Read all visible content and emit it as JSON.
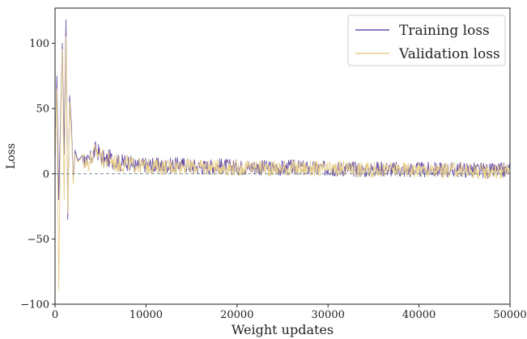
{
  "chart_data": {
    "type": "line",
    "title": "",
    "xlabel": "Weight updates",
    "ylabel": "Loss",
    "xlim": [
      0,
      50000
    ],
    "ylim": [
      -100,
      127
    ],
    "xticks": [
      0,
      10000,
      20000,
      30000,
      40000,
      50000
    ],
    "xtick_labels": [
      "0",
      "10000",
      "20000",
      "30000",
      "40000",
      "50000"
    ],
    "yticks": [
      -100,
      -50,
      0,
      50,
      100
    ],
    "ytick_labels": [
      "−100",
      "−50",
      "0",
      "50",
      "100"
    ],
    "grid": false,
    "reference_line": {
      "y": 0,
      "style": "dashed",
      "color": "#5a7a8c"
    },
    "legend": {
      "placement": "top-right"
    },
    "series": [
      {
        "name": "Training loss",
        "color": "#6a4fa8",
        "x": [
          0,
          200,
          400,
          600,
          800,
          1000,
          1200,
          1400,
          1600,
          1800,
          2000,
          2200,
          2500,
          3000,
          3500,
          4000,
          4500,
          5000,
          5500,
          6000,
          7000,
          8000,
          9000,
          10000,
          12000,
          14000,
          16000,
          18000,
          20000,
          22000,
          24000,
          26000,
          28000,
          30000,
          32000,
          34000,
          36000,
          38000,
          40000,
          42000,
          44000,
          46000,
          48000,
          50000
        ],
        "values": [
          10,
          75,
          -20,
          40,
          100,
          15,
          118,
          -35,
          60,
          37,
          -5,
          18,
          10,
          14,
          8,
          12,
          19,
          14,
          10,
          12,
          8,
          9,
          6,
          7,
          6,
          7,
          5,
          6,
          5,
          5,
          4,
          5,
          4,
          4,
          4,
          3,
          4,
          3,
          3,
          3,
          3,
          3,
          2,
          3
        ]
      },
      {
        "name": "Validation loss",
        "color": "#e8d08a",
        "x": [
          0,
          200,
          400,
          600,
          800,
          1000,
          1200,
          1400,
          1600,
          1800,
          2000,
          2200,
          2500,
          3000,
          3500,
          4000,
          4500,
          5000,
          5500,
          6000,
          7000,
          8000,
          9000,
          10000,
          12000,
          14000,
          16000,
          18000,
          20000,
          22000,
          24000,
          26000,
          28000,
          30000,
          32000,
          34000,
          36000,
          38000,
          40000,
          42000,
          44000,
          46000,
          48000,
          50000
        ],
        "values": [
          8,
          65,
          -90,
          30,
          95,
          -20,
          105,
          -30,
          55,
          30,
          -8,
          15,
          9,
          13,
          7,
          11,
          18,
          13,
          9,
          11,
          7,
          8,
          6,
          6,
          5,
          6,
          5,
          5,
          4,
          5,
          4,
          4,
          4,
          3,
          4,
          3,
          3,
          3,
          3,
          2,
          3,
          2,
          2,
          2
        ]
      }
    ]
  }
}
